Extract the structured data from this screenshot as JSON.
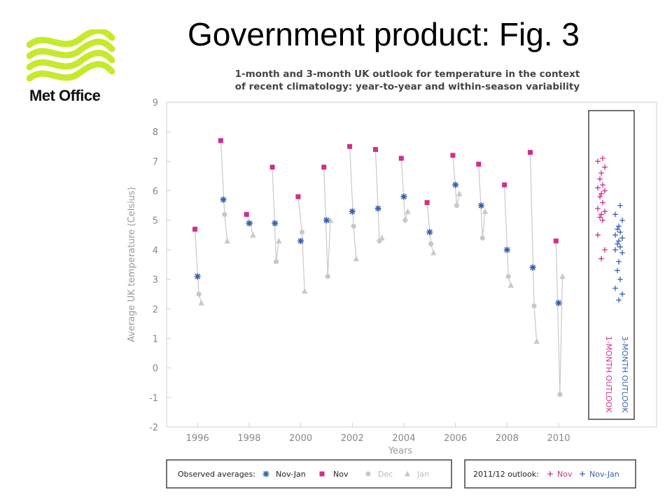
{
  "slide": {
    "title": "Government product: Fig. 3",
    "logo_text": "Met Office",
    "logo_icon": "met-office-wave-logo",
    "logo_color": "#c5ea2c"
  },
  "chart_data": {
    "type": "scatter",
    "title_lines": [
      "1-month and 3-month UK outlook for temperature in the context",
      "of recent climatology: year-to-year and within-season variability"
    ],
    "xlabel": "Years",
    "ylabel": "Average UK temperature (Celsius)",
    "xlim": [
      1994.8,
      2013.8
    ],
    "ylim": [
      -2,
      9
    ],
    "x_ticks": [
      1996,
      1998,
      2000,
      2002,
      2004,
      2006,
      2008,
      2010
    ],
    "y_ticks": [
      -2,
      -1,
      0,
      1,
      2,
      3,
      4,
      5,
      6,
      7,
      8,
      9
    ],
    "colors": {
      "nov": "#d12e8a",
      "novjan": "#3a5fb0",
      "dec": "#c8c8c8",
      "jan": "#c8c8c8",
      "line": "#c8c8c8"
    },
    "seasons": [
      {
        "nov": 4.7,
        "novjan": 3.1,
        "dec": 2.5,
        "jan": 2.2
      },
      {
        "nov": 7.7,
        "novjan": 5.7,
        "dec": 5.2,
        "jan": 4.3
      },
      {
        "nov": 5.2,
        "novjan": 4.9,
        "dec": 4.9,
        "jan": 4.5
      },
      {
        "nov": 6.8,
        "novjan": 4.9,
        "dec": 3.6,
        "jan": 4.3
      },
      {
        "nov": 5.8,
        "novjan": 4.3,
        "dec": 4.6,
        "jan": 2.6
      },
      {
        "nov": 6.8,
        "novjan": 5.0,
        "dec": 3.1,
        "jan": 5.0
      },
      {
        "nov": 7.5,
        "novjan": 5.3,
        "dec": 4.8,
        "jan": 3.7
      },
      {
        "nov": 7.4,
        "novjan": 5.4,
        "dec": 4.3,
        "jan": 4.4
      },
      {
        "nov": 7.1,
        "novjan": 5.8,
        "dec": 5.0,
        "jan": 5.3
      },
      {
        "nov": 5.6,
        "novjan": 4.6,
        "dec": 4.2,
        "jan": 3.9
      },
      {
        "nov": 7.2,
        "novjan": 6.2,
        "dec": 5.5,
        "jan": 5.9
      },
      {
        "nov": 6.9,
        "novjan": 5.5,
        "dec": 4.4,
        "jan": 5.3
      },
      {
        "nov": 6.2,
        "novjan": 4.0,
        "dec": 3.1,
        "jan": 2.8
      },
      {
        "nov": 7.3,
        "novjan": 3.4,
        "dec": 2.1,
        "jan": 0.9
      },
      {
        "nov": 4.3,
        "novjan": 2.2,
        "dec": -0.9,
        "jan": 3.1
      }
    ],
    "outlook": {
      "nov_label": "1-MONTH OUTLOOK",
      "novjan_label": "3-MONTH OUTLOOK",
      "nov_values": [
        3.7,
        4.0,
        4.5,
        5.0,
        5.1,
        5.2,
        5.3,
        5.4,
        5.6,
        5.8,
        5.9,
        6.0,
        6.1,
        6.2,
        6.4,
        6.6,
        6.8,
        7.0,
        7.1
      ],
      "novjan_values": [
        2.3,
        2.5,
        2.7,
        3.0,
        3.3,
        3.6,
        3.9,
        4.0,
        4.1,
        4.2,
        4.3,
        4.4,
        4.5,
        4.6,
        4.7,
        4.8,
        5.0,
        5.2,
        5.5
      ]
    },
    "legend": {
      "observed_label": "Observed averages:",
      "items": [
        {
          "symbol": "asterisk",
          "label": "Nov-Jan"
        },
        {
          "symbol": "square",
          "label": "Nov"
        },
        {
          "symbol": "circle",
          "label": "Dec"
        },
        {
          "symbol": "triangle",
          "label": "Jan"
        }
      ],
      "outlook_label": "2011/12 outlook:",
      "outlook_items": [
        {
          "symbol": "plus-pink",
          "label": "Nov"
        },
        {
          "symbol": "plus-blue",
          "label": "Nov-Jan"
        }
      ]
    }
  }
}
